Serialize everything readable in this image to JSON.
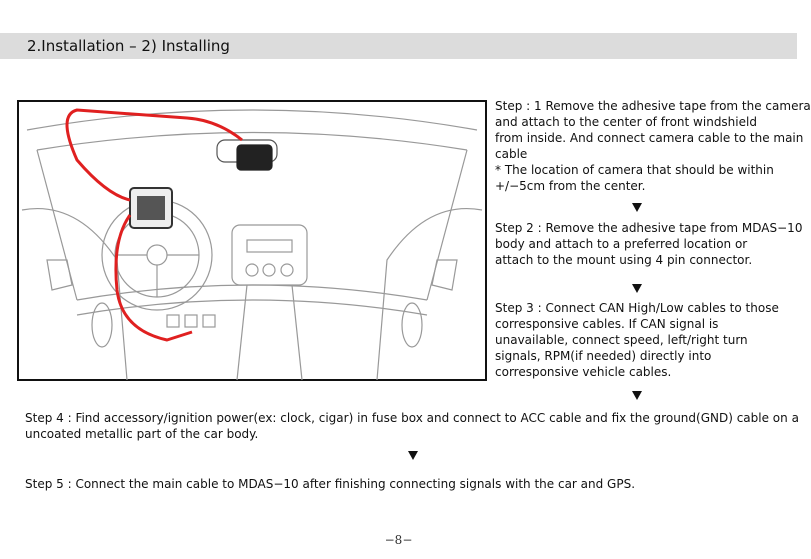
{
  "header": {
    "title": "2.Installation – 2) Installing"
  },
  "side_steps": [
    {
      "lines": [
        "Step : 1 Remove the adhesive tape from the camera",
        "and attach to the center of front windshield",
        "from inside. And connect camera cable to the main",
        "cable",
        "* The location of camera that should be within",
        "+/−5cm from the center."
      ]
    },
    {
      "lines": [
        "Step 2 : Remove the adhesive tape from MDAS−10",
        "body and attach to a preferred location or",
        "attach to the mount using 4 pin connector."
      ]
    },
    {
      "lines": [
        "Step 3 : Connect CAN High/Low cables to those",
        "corresponsive cables. If CAN signal is",
        "unavailable, connect speed, left/right turn",
        "signals, RPM(if needed) directly into",
        "corresponsive vehicle cables."
      ]
    }
  ],
  "bottom_steps": [
    {
      "lines": [
        "Step 4 : Find accessory/ignition power(ex: clock, cigar) in fuse box and connect to ACC cable and fix the ground(GND) cable on a",
        "uncoated metallic part of the car body."
      ]
    },
    {
      "lines": [
        "Step 5 : Connect the main cable to MDAS−10 after finishing connecting signals with the car and GPS."
      ]
    }
  ],
  "footer": {
    "page_number": "−8−"
  }
}
